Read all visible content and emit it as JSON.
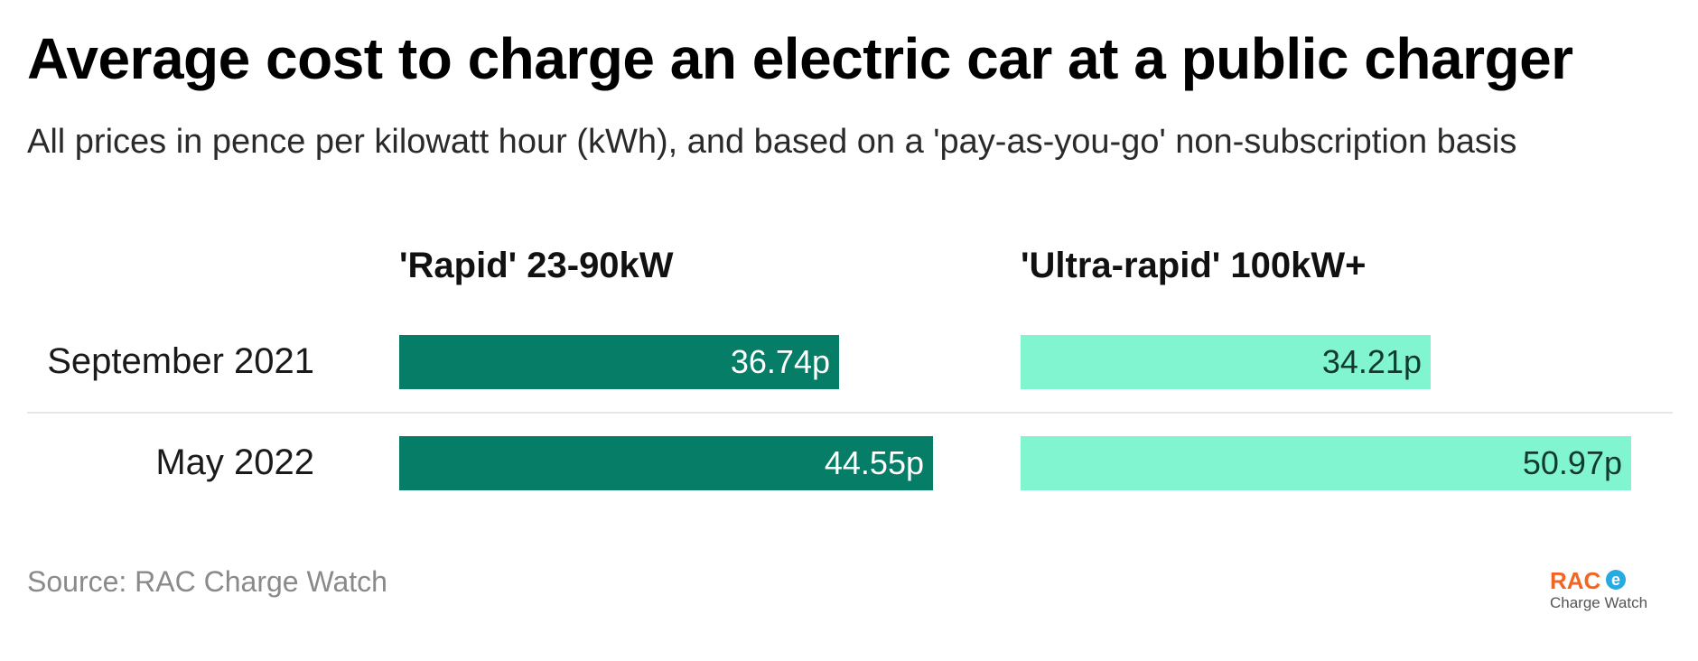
{
  "title": "Average cost to charge an electric car at a public charger",
  "subtitle": "All prices in pence per kilowatt hour (kWh), and based on a 'pay-as-you-go' non-subscription basis",
  "source": "Source: RAC Charge Watch",
  "logo": {
    "brand": "RAC",
    "badge": "e",
    "sub": "Charge Watch"
  },
  "colors": {
    "rapid": "#057d67",
    "ultra_rapid": "#81f5cf",
    "rapid_label": "#ffffff",
    "ultra_label": "#123a2e"
  },
  "chart_data": {
    "type": "bar",
    "orientation": "horizontal",
    "title": "Average cost to charge an electric car at a public charger",
    "subtitle": "All prices in pence per kilowatt hour (kWh), and based on a 'pay-as-you-go' non-subscription basis",
    "categories": [
      "September 2021",
      "May 2022"
    ],
    "unit": "p",
    "series": [
      {
        "name": "'Rapid' 23-90kW",
        "values": [
          36.74,
          44.55
        ],
        "labels": [
          "36.74p",
          "44.55p"
        ]
      },
      {
        "name": "'Ultra-rapid' 100kW+",
        "values": [
          34.21,
          50.97
        ],
        "labels": [
          "34.21p",
          "50.97p"
        ]
      }
    ],
    "grid": false,
    "legend": "none"
  }
}
